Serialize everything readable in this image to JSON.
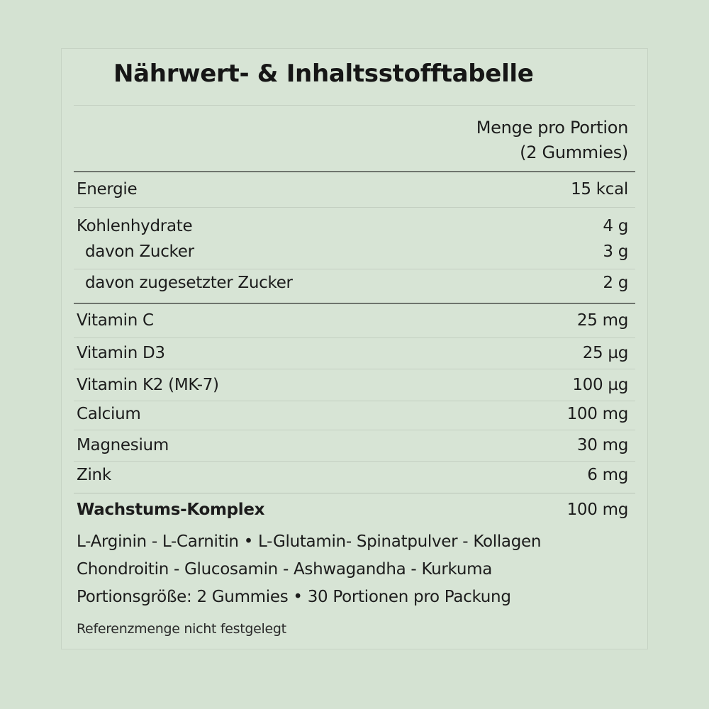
{
  "title": "Nährwert- & Inhaltsstofftabelle",
  "header": {
    "line1": "Menge pro Portion",
    "line2": "(2 Gummies)"
  },
  "rows": [
    {
      "label": "Energie",
      "value": "15 kcal"
    },
    {
      "label": "Kohlenhydrate",
      "value": "4 g"
    },
    {
      "label": "davon Zucker",
      "value": "3 g"
    },
    {
      "label": "davon zugesetzter Zucker",
      "value": "2 g"
    },
    {
      "label": "Vitamin C",
      "value": "25 mg"
    },
    {
      "label": "Vitamin D3",
      "value": "25 µg"
    },
    {
      "label": "Vitamin K2 (MK-7)",
      "value": "100  µg"
    },
    {
      "label": "Calcium",
      "value": "100 mg"
    },
    {
      "label": "Magnesium",
      "value": "30 mg"
    },
    {
      "label": "Zink",
      "value": "6 mg"
    },
    {
      "label": "Wachstums-Komplex",
      "value": "100 mg"
    }
  ],
  "ingredients": [
    "L-Arginin - L-Carnitin • L-Glutamin- Spinatpulver - Kollagen",
    "Chondroitin - Glucosamin - Ashwagandha - Kurkuma"
  ],
  "serving_info": "Portionsgröße: 2 Gummies • 30 Portionen pro Packung",
  "footnote": "Referenzmenge nicht festgelegt"
}
